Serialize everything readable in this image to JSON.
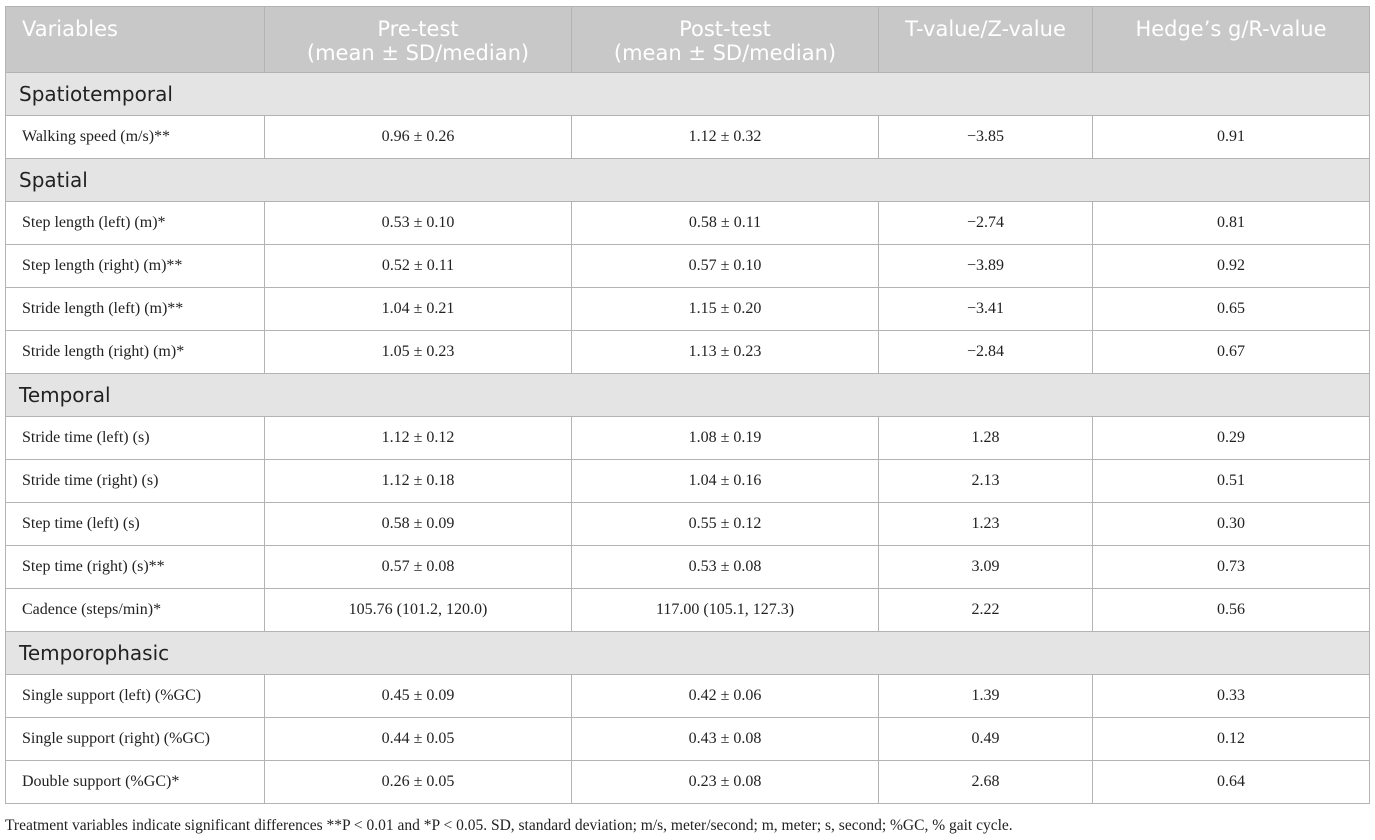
{
  "header": {
    "variables": "Variables",
    "pre_line1": "Pre-test",
    "pre_line2": "(mean ± SD/median)",
    "post_line1": "Post-test",
    "post_line2": "(mean ± SD/median)",
    "t_value": "T-value/Z-value",
    "effect": "Hedge’s g/R-value"
  },
  "sections": [
    {
      "title": "Spatiotemporal",
      "rows": [
        {
          "label": "Walking speed (m/s)**",
          "pre": "0.96 ± 0.26",
          "post": "1.12 ± 0.32",
          "t": "−3.85",
          "g": "0.91"
        }
      ]
    },
    {
      "title": "Spatial",
      "rows": [
        {
          "label": "Step length (left) (m)*",
          "pre": "0.53 ± 0.10",
          "post": "0.58 ± 0.11",
          "t": "−2.74",
          "g": "0.81"
        },
        {
          "label": "Step length (right) (m)**",
          "pre": "0.52 ± 0.11",
          "post": "0.57 ± 0.10",
          "t": "−3.89",
          "g": "0.92"
        },
        {
          "label": "Stride length (left) (m)**",
          "pre": "1.04 ± 0.21",
          "post": "1.15 ± 0.20",
          "t": "−3.41",
          "g": "0.65"
        },
        {
          "label": "Stride length (right) (m)*",
          "pre": "1.05 ± 0.23",
          "post": "1.13 ± 0.23",
          "t": "−2.84",
          "g": "0.67"
        }
      ]
    },
    {
      "title": "Temporal",
      "rows": [
        {
          "label": "Stride time (left) (s)",
          "pre": "1.12 ± 0.12",
          "post": "1.08 ± 0.19",
          "t": "1.28",
          "g": "0.29"
        },
        {
          "label": "Stride time (right) (s)",
          "pre": "1.12 ± 0.18",
          "post": "1.04 ± 0.16",
          "t": "2.13",
          "g": "0.51"
        },
        {
          "label": "Step time (left) (s)",
          "pre": "0.58 ± 0.09",
          "post": "0.55 ± 0.12",
          "t": "1.23",
          "g": "0.30"
        },
        {
          "label": "Step time (right) (s)**",
          "pre": "0.57 ± 0.08",
          "post": "0.53 ± 0.08",
          "t": "3.09",
          "g": "0.73"
        },
        {
          "label": "Cadence (steps/min)*",
          "pre": "105.76 (101.2, 120.0)",
          "post": "117.00 (105.1, 127.3)",
          "t": "2.22",
          "g": "0.56"
        }
      ]
    },
    {
      "title": "Temporophasic",
      "rows": [
        {
          "label": "Single support (left) (%GC)",
          "pre": "0.45 ± 0.09",
          "post": "0.42 ± 0.06",
          "t": "1.39",
          "g": "0.33"
        },
        {
          "label": "Single support (right) (%GC)",
          "pre": "0.44 ± 0.05",
          "post": "0.43 ± 0.08",
          "t": "0.49",
          "g": "0.12"
        },
        {
          "label": "Double support (%GC)*",
          "pre": "0.26 ± 0.05",
          "post": "0.23 ± 0.08",
          "t": "2.68",
          "g": "0.64"
        }
      ]
    }
  ],
  "footnote": "Treatment variables indicate significant differences **P < 0.01 and *P < 0.05. SD, standard deviation; m/s, meter/second; m, meter; s, second; %GC, % gait cycle."
}
